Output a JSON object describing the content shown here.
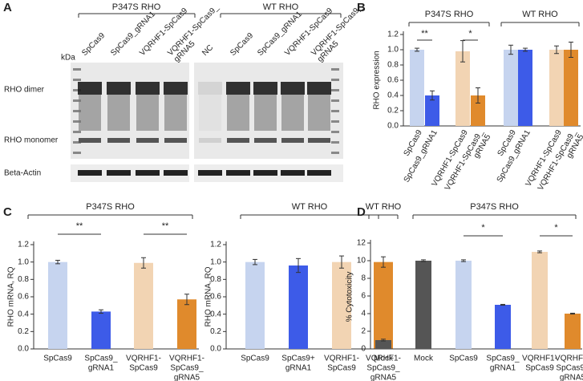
{
  "blot": {
    "label": "A",
    "groups": [
      "P347S RHO",
      "WT RHO"
    ],
    "kda": "kDa",
    "lanes_left": [
      [
        "SpCas9"
      ],
      [
        "SpCas9_gRNA1"
      ],
      [
        "VQRHF1-SpCas9"
      ],
      [
        "VQRHF1-SpCas9_",
        "gRNA5"
      ]
    ],
    "lanes_right": [
      [
        "NC"
      ],
      [
        "SpCas9"
      ],
      [
        "SpCas9_gRNA1"
      ],
      [
        "VQRHF1-SpCas9"
      ],
      [
        "VQRHF1-SpCas9_",
        "gRNA5"
      ]
    ],
    "rows": [
      "RHO dimer",
      "RHO monomer",
      "Beta-Actin"
    ]
  },
  "chart_data": [
    {
      "type": "bar",
      "label": "B",
      "ylabel": "RHO expression",
      "groups": [
        "P347S RHO",
        "WT RHO"
      ],
      "categories": [
        [
          "SpCas9"
        ],
        [
          "SpCas9_gRNA1"
        ],
        [
          "VQRHF1-SpCas9"
        ],
        [
          "VQRHF1-SpCas9_",
          "gRNA5"
        ],
        [
          "SpCas9"
        ],
        [
          "SpCas9_gRNA1"
        ],
        [
          "VQRHF1-SpCas9"
        ],
        [
          "VQRHF1-SpCas9_",
          "gRNA5"
        ]
      ],
      "values": [
        1.0,
        0.4,
        0.98,
        0.4,
        1.0,
        1.0,
        1.0,
        1.0
      ],
      "errors": [
        0.02,
        0.06,
        0.14,
        0.1,
        0.06,
        0.02,
        0.05,
        0.1
      ],
      "colors": [
        "#c6d4ef",
        "#3d5be8",
        "#f2d4b3",
        "#e08a2c",
        "#c6d4ef",
        "#3d5be8",
        "#f2d4b3",
        "#e08a2c"
      ],
      "significance": [
        "**",
        "*"
      ],
      "ylim": [
        0,
        1.2
      ],
      "yticks": [
        {
          "value": 0,
          "label": "0.0"
        },
        0.2,
        0.4,
        0.6,
        0.8,
        {
          "value": 1,
          "label": "1.0"
        },
        1.2
      ]
    },
    {
      "type": "bar",
      "label": "C",
      "ylabel": "RHO mRNA, RQ",
      "groups": [
        "P347S RHO"
      ],
      "categories": [
        [
          "SpCas9"
        ],
        [
          "SpCas9_",
          "gRNA1"
        ],
        [
          "VQRHF1-",
          "SpCas9"
        ],
        [
          "VQRHF1-",
          "SpCas9_",
          "gRNA5"
        ]
      ],
      "values": [
        1.0,
        0.43,
        0.99,
        0.57
      ],
      "errors": [
        0.02,
        0.02,
        0.06,
        0.06
      ],
      "colors": [
        "#c6d4ef",
        "#3d5be8",
        "#f2d4b3",
        "#e08a2c"
      ],
      "significance": [
        "**",
        "**"
      ],
      "ylim": [
        0,
        1.2
      ],
      "yticks": [
        {
          "value": 0,
          "label": "0.0"
        },
        0.2,
        0.4,
        0.6,
        0.8,
        {
          "value": 1,
          "label": "1.0"
        },
        1.2
      ]
    },
    {
      "type": "bar",
      "ylabel": "RHO mRNA, RQ",
      "groups": [
        "WT RHO"
      ],
      "categories": [
        [
          "SpCas9"
        ],
        [
          "SpCas9+",
          "gRNA1"
        ],
        [
          "VQRHF1-",
          "SpCas9"
        ],
        [
          "VQRHF1-",
          "SpCas9_",
          "gRNA5"
        ]
      ],
      "values": [
        1.0,
        0.96,
        1.0,
        1.0
      ],
      "errors": [
        0.03,
        0.08,
        0.07,
        0.06
      ],
      "colors": [
        "#c6d4ef",
        "#3d5be8",
        "#f2d4b3",
        "#e08a2c"
      ],
      "ylim": [
        0,
        1.2
      ],
      "yticks": [
        {
          "value": 0,
          "label": "0.0"
        },
        0.2,
        0.4,
        0.6,
        0.8,
        {
          "value": 1,
          "label": "1.0"
        },
        1.2
      ]
    },
    {
      "type": "bar",
      "label": "D",
      "ylabel": "% Cytotoxicity",
      "groups": [
        "WT RHO",
        "P347S RHO"
      ],
      "categories": [
        [
          "Mock"
        ],
        [
          "Mock"
        ],
        [
          "SpCas9"
        ],
        [
          "SpCas9_",
          "gRNA1"
        ],
        [
          "VQRHF1-",
          "SpCas9"
        ],
        [
          "VQRHF1-",
          "SpCas9_",
          "gRNA5"
        ]
      ],
      "values": [
        1.0,
        10.0,
        10.0,
        5.0,
        11.0,
        4.0
      ],
      "errors": [
        0.1,
        0.1,
        0.1,
        0.05,
        0.1,
        0.05
      ],
      "colors": [
        "#555555",
        "#555555",
        "#c6d4ef",
        "#3d5be8",
        "#f2d4b3",
        "#e08a2c"
      ],
      "significance": [
        "*",
        "*"
      ],
      "ylim": [
        0,
        12
      ],
      "yticks": [
        0,
        2,
        4,
        6,
        8,
        10,
        12
      ]
    }
  ]
}
